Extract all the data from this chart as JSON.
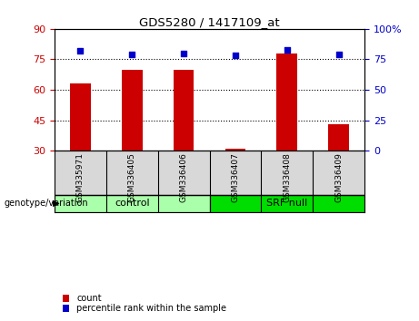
{
  "title": "GDS5280 / 1417109_at",
  "samples": [
    "GSM335971",
    "GSM336405",
    "GSM336406",
    "GSM336407",
    "GSM336408",
    "GSM336409"
  ],
  "count_values": [
    63,
    70,
    70,
    31,
    78,
    43
  ],
  "percentile_values": [
    82,
    79,
    80,
    78,
    83,
    79
  ],
  "left_ylim": [
    30,
    90
  ],
  "right_ylim": [
    0,
    100
  ],
  "left_yticks": [
    30,
    45,
    60,
    75,
    90
  ],
  "right_yticks": [
    0,
    25,
    50,
    75,
    100
  ],
  "right_yticklabels": [
    "0",
    "25",
    "50",
    "75",
    "100%"
  ],
  "hlines": [
    45,
    60,
    75
  ],
  "bar_color": "#cc0000",
  "scatter_color": "#0000cc",
  "bar_width": 0.4,
  "groups": [
    {
      "label": "control",
      "start": 0,
      "end": 3,
      "color": "#aaffaa"
    },
    {
      "label": "SRF null",
      "start": 3,
      "end": 6,
      "color": "#00dd00"
    }
  ],
  "group_label": "genotype/variation",
  "legend_count": "count",
  "legend_percentile": "percentile rank within the sample",
  "tick_label_color_left": "#cc0000",
  "tick_label_color_right": "#0000cc",
  "sample_bg_color": "#d8d8d8",
  "plot_bg": "#ffffff"
}
